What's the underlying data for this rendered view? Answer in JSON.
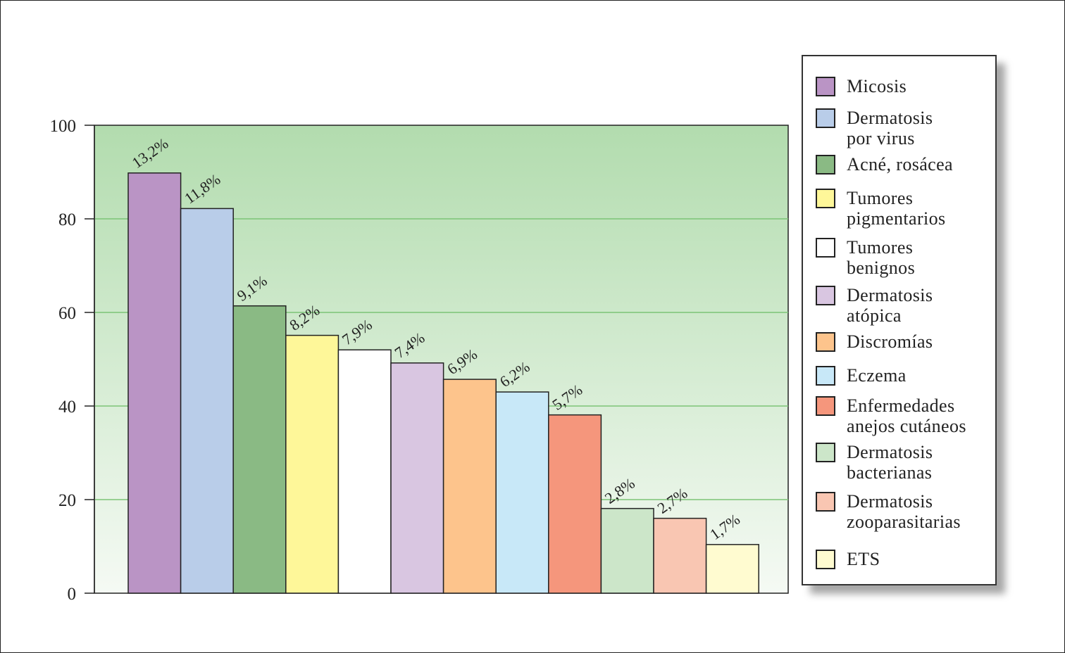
{
  "chart_data": {
    "type": "bar",
    "title": "",
    "xlabel": "",
    "ylabel": "",
    "ylim": [
      0,
      100
    ],
    "yticks": [
      "0",
      "20",
      "40",
      "60",
      "80",
      "100"
    ],
    "grid": true,
    "legend_position": "right",
    "background_gradient": [
      "#b2dcae",
      "#f5faf4"
    ],
    "grid_color": "#7cc476",
    "categories": [
      "Micosis",
      "Dermatosis\npor virus",
      "Acné, rosácea",
      "Tumores\npigmentarios",
      "Tumores\nbenignos",
      "Dermatosis\natópica",
      "Discromías",
      "Eczema",
      "Enfermedades\nanejos cutáneos",
      "Dermatosis\nbacterianas",
      "Dermatosis\nzooparasitarias",
      "ETS"
    ],
    "values": [
      89.8,
      82.2,
      61.4,
      55.1,
      52.0,
      49.2,
      45.7,
      43.0,
      38.1,
      18.1,
      16.0,
      10.4
    ],
    "data_labels": [
      "13,2%",
      "11,8%",
      "9,1%",
      "8,2%",
      "7,9%",
      "7,4%",
      "6,9%",
      "6,2%",
      "5,7%",
      "2,8%",
      "2,7%",
      "1,7%"
    ],
    "colors": [
      "#ba94c5",
      "#b9cde9",
      "#8aba84",
      "#fef799",
      "#ffffff",
      "#d9c6e1",
      "#fdc48c",
      "#c8e8f8",
      "#f5967c",
      "#cce6c9",
      "#f9c6b2",
      "#fffbd0"
    ]
  }
}
